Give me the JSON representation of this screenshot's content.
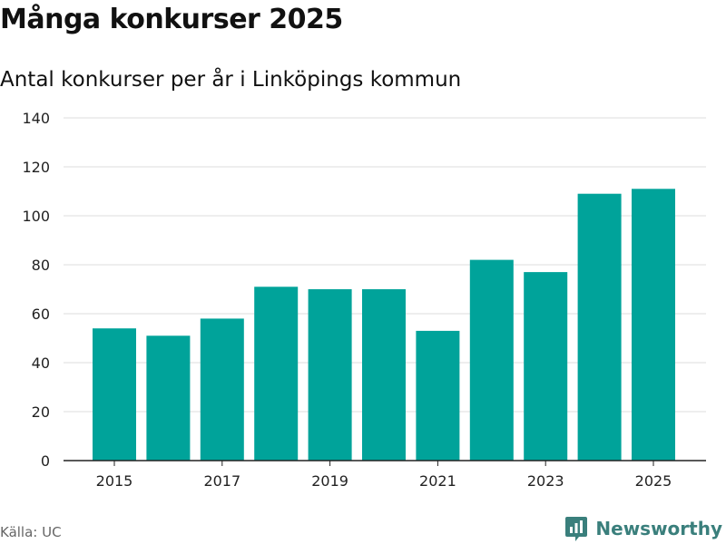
{
  "title": "Många konkurser 2025",
  "subtitle": "Antal konkurser per år i Linköpings kommun",
  "source": "Källa: UC",
  "brand": "Newsworthy",
  "colors": {
    "bar": "#00a39a",
    "grid": "#dddddd",
    "axis": "#222222",
    "brand": "#3a7f7c"
  },
  "chart_data": {
    "type": "bar",
    "title": "Många konkurser 2025",
    "subtitle": "Antal konkurser per år i Linköpings kommun",
    "xlabel": "",
    "ylabel": "",
    "categories": [
      "2015",
      "2016",
      "2017",
      "2018",
      "2019",
      "2020",
      "2021",
      "2022",
      "2023",
      "2024",
      "2025"
    ],
    "values": [
      54,
      51,
      58,
      71,
      70,
      70,
      53,
      82,
      77,
      109,
      111
    ],
    "ylim": [
      0,
      140
    ],
    "yticks": [
      0,
      20,
      40,
      60,
      80,
      100,
      120,
      140
    ],
    "xtick_labels": [
      "2015",
      "2017",
      "2019",
      "2021",
      "2023",
      "2025"
    ],
    "grid": true,
    "legend": "none"
  }
}
